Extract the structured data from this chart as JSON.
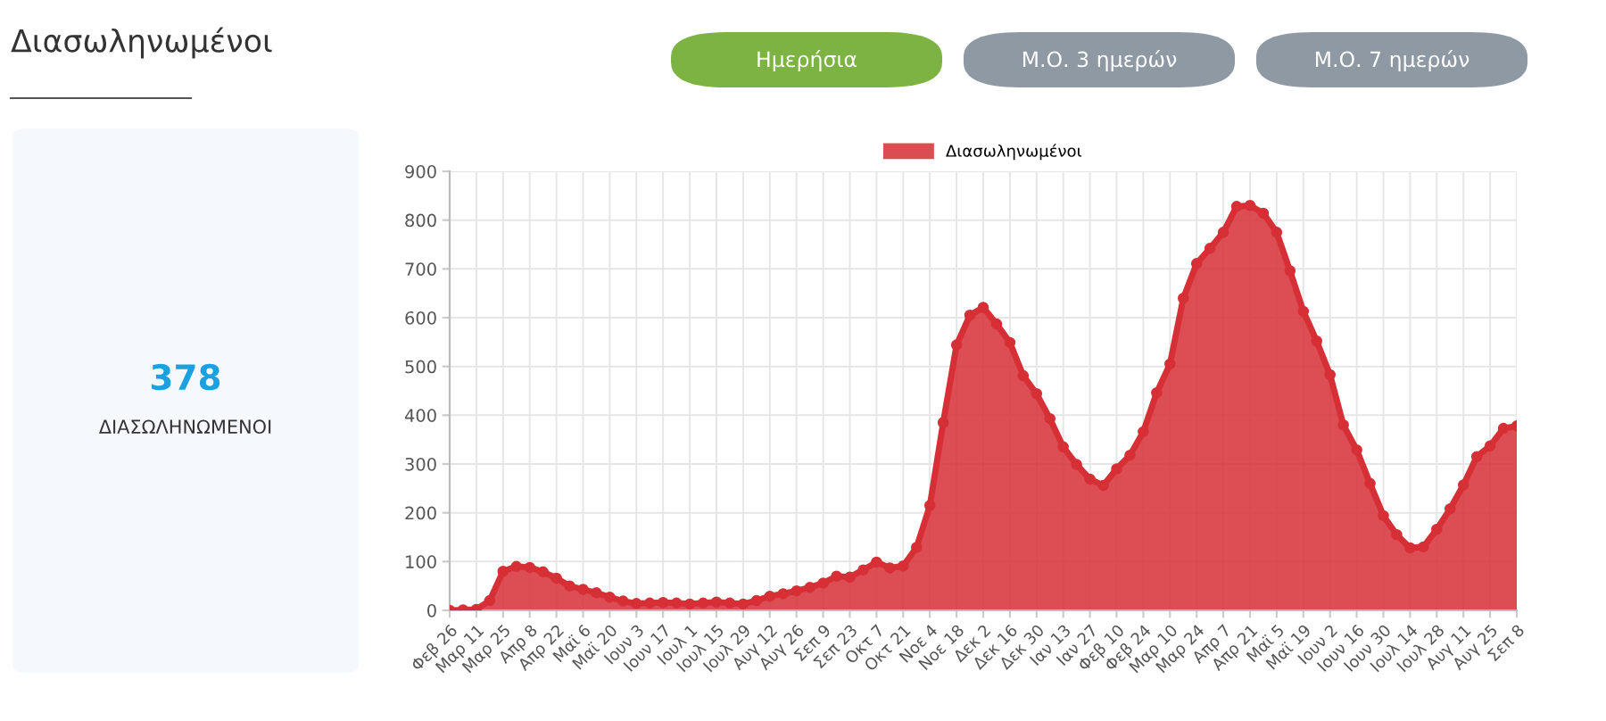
{
  "chart_data": [
    {
      "type": "other",
      "title": "Διασωληνωμένοι",
      "annotations": [
        "Ημερήσια",
        "Μ.Ο. 3 ημερών",
        "Μ.Ο. 7 ημερών"
      ],
      "colors": [
        "#7cb342",
        "#8e99a4",
        "#8e99a4"
      ]
    },
    {
      "type": "other",
      "annotations": [
        "378",
        "ΔΙΑΣΩΛΗΝΩΜΕΝΟΙ"
      ]
    },
    {
      "type": "area",
      "legend": "top",
      "grid": true,
      "marker": "circle",
      "categories": [
        "Φεβ 26",
        null,
        "Μαρ 11",
        null,
        "Μαρ 25",
        null,
        "Απρ 8",
        null,
        "Απρ 22",
        null,
        "Μαϊ 6",
        null,
        "Μαϊ 20",
        null,
        "Ιουν 3",
        null,
        "Ιουν 17",
        null,
        "Ιουλ 1",
        null,
        "Ιουλ 15",
        null,
        "Ιουλ 29",
        null,
        "Αυγ 12",
        null,
        "Αυγ 26",
        null,
        "Σεπ 9",
        null,
        "Σεπ 23",
        null,
        "Οκτ 7",
        null,
        "Οκτ 21",
        null,
        "Νοε 4",
        null,
        "Νοε 18",
        null,
        "Δεκ 2",
        null,
        "Δεκ 16",
        null,
        "Δεκ 30",
        null,
        "Ιαν 13",
        null,
        "Ιαν 27",
        null,
        "Φεβ 10",
        null,
        "Φεβ 24",
        null,
        "Μαρ 10",
        null,
        "Μαρ 24",
        null,
        "Απρ 7",
        null,
        "Απρ 21",
        null,
        "Μαϊ 5",
        null,
        "Μαϊ 19",
        null,
        "Ιουν 2",
        null,
        "Ιουν 16",
        null,
        "Ιουν 30",
        null,
        "Ιουλ 14",
        null,
        "Ιουλ 28",
        null,
        "Αυγ 11",
        null,
        "Αυγ 25",
        null,
        "Σεπ 8"
      ],
      "series": [
        {
          "name": "Διασωληνωμένοι",
          "color": "#d62f35",
          "values": [
            0,
            1,
            2,
            20,
            80,
            90,
            88,
            79,
            66,
            50,
            43,
            36,
            27,
            19,
            14,
            15,
            16,
            15,
            13,
            15,
            17,
            15,
            13,
            20,
            29,
            34,
            40,
            47,
            56,
            70,
            68,
            83,
            99,
            87,
            91,
            129,
            215,
            385,
            544,
            605,
            621,
            587,
            549,
            481,
            444,
            393,
            335,
            299,
            269,
            256,
            290,
            318,
            366,
            446,
            505,
            640,
            711,
            742,
            775,
            828,
            830,
            814,
            775,
            696,
            613,
            552,
            483,
            380,
            329,
            260,
            194,
            155,
            128,
            130,
            166,
            208,
            257,
            315,
            337,
            373,
            378
          ]
        }
      ],
      "ylim": [
        0,
        900
      ],
      "yticks": [
        0,
        100,
        200,
        300,
        400,
        500,
        600,
        700,
        800,
        900
      ]
    }
  ]
}
